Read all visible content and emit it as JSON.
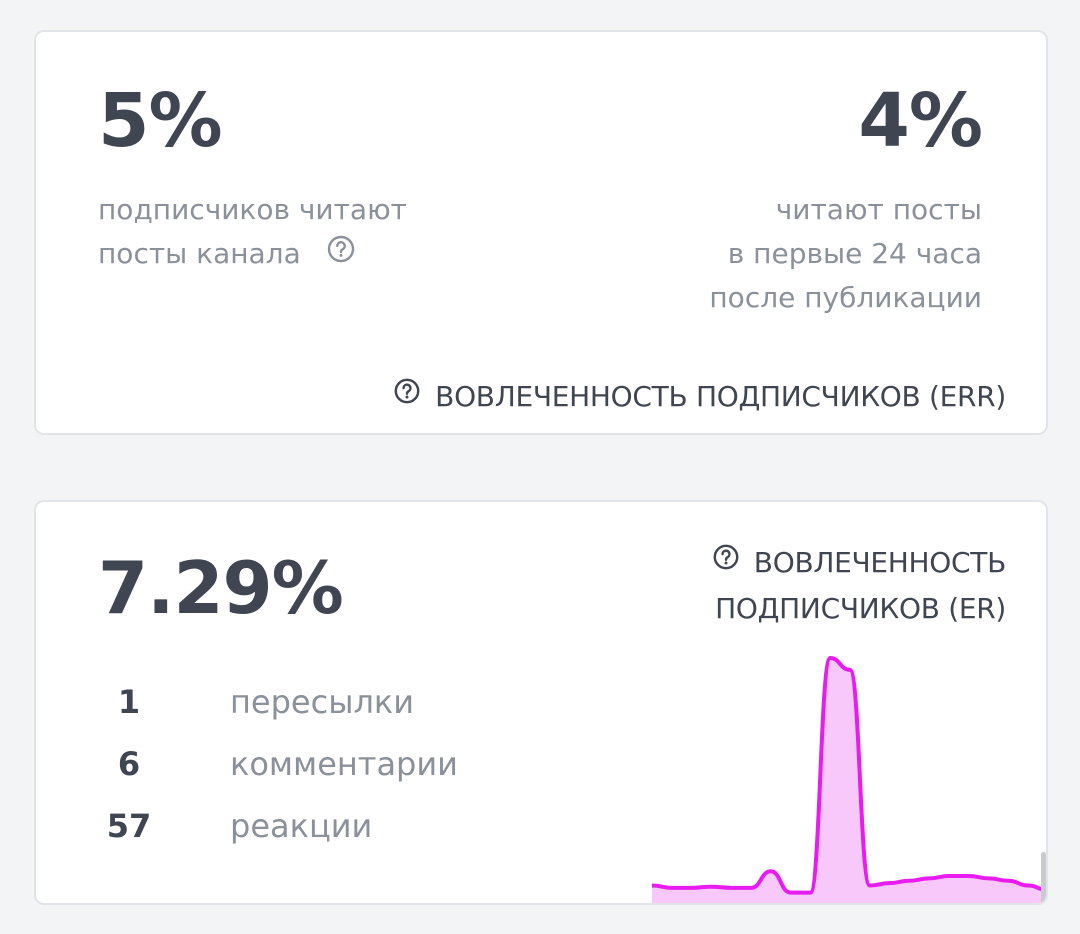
{
  "err_card": {
    "left_value": "5%",
    "left_desc_line1": "подписчиков читают",
    "left_desc_line2": "посты канала",
    "right_value": "4%",
    "right_desc_line1": "читают посты",
    "right_desc_line2": "в первые 24 часа",
    "right_desc_line3": "после публикации",
    "caption": "ВОВЛЕЧЕННОСТЬ ПОДПИСЧИКОВ (ERR)"
  },
  "er_card": {
    "value": "7.29%",
    "caption_line1": "ВОВЛЕЧЕННОСТЬ",
    "caption_line2": "ПОДПИСЧИКОВ (ER)",
    "stats": [
      {
        "count": "1",
        "label": "пересылки"
      },
      {
        "count": "6",
        "label": "комментарии"
      },
      {
        "count": "57",
        "label": "реакции"
      }
    ],
    "sparkline": {
      "values": [
        4,
        3,
        3,
        3.5,
        3,
        3,
        10,
        1,
        1,
        100,
        95,
        4,
        5,
        6,
        7,
        8,
        8,
        7,
        6,
        4,
        2
      ],
      "color": "#e81cf0",
      "fill": "#f9c8fb"
    }
  },
  "colors": {
    "text_dark": "#3f4651",
    "text_muted": "#8a919b",
    "background": "#f3f4f6",
    "card_border": "#e1e4e8"
  },
  "icons": {
    "help": "question-circle-icon"
  }
}
